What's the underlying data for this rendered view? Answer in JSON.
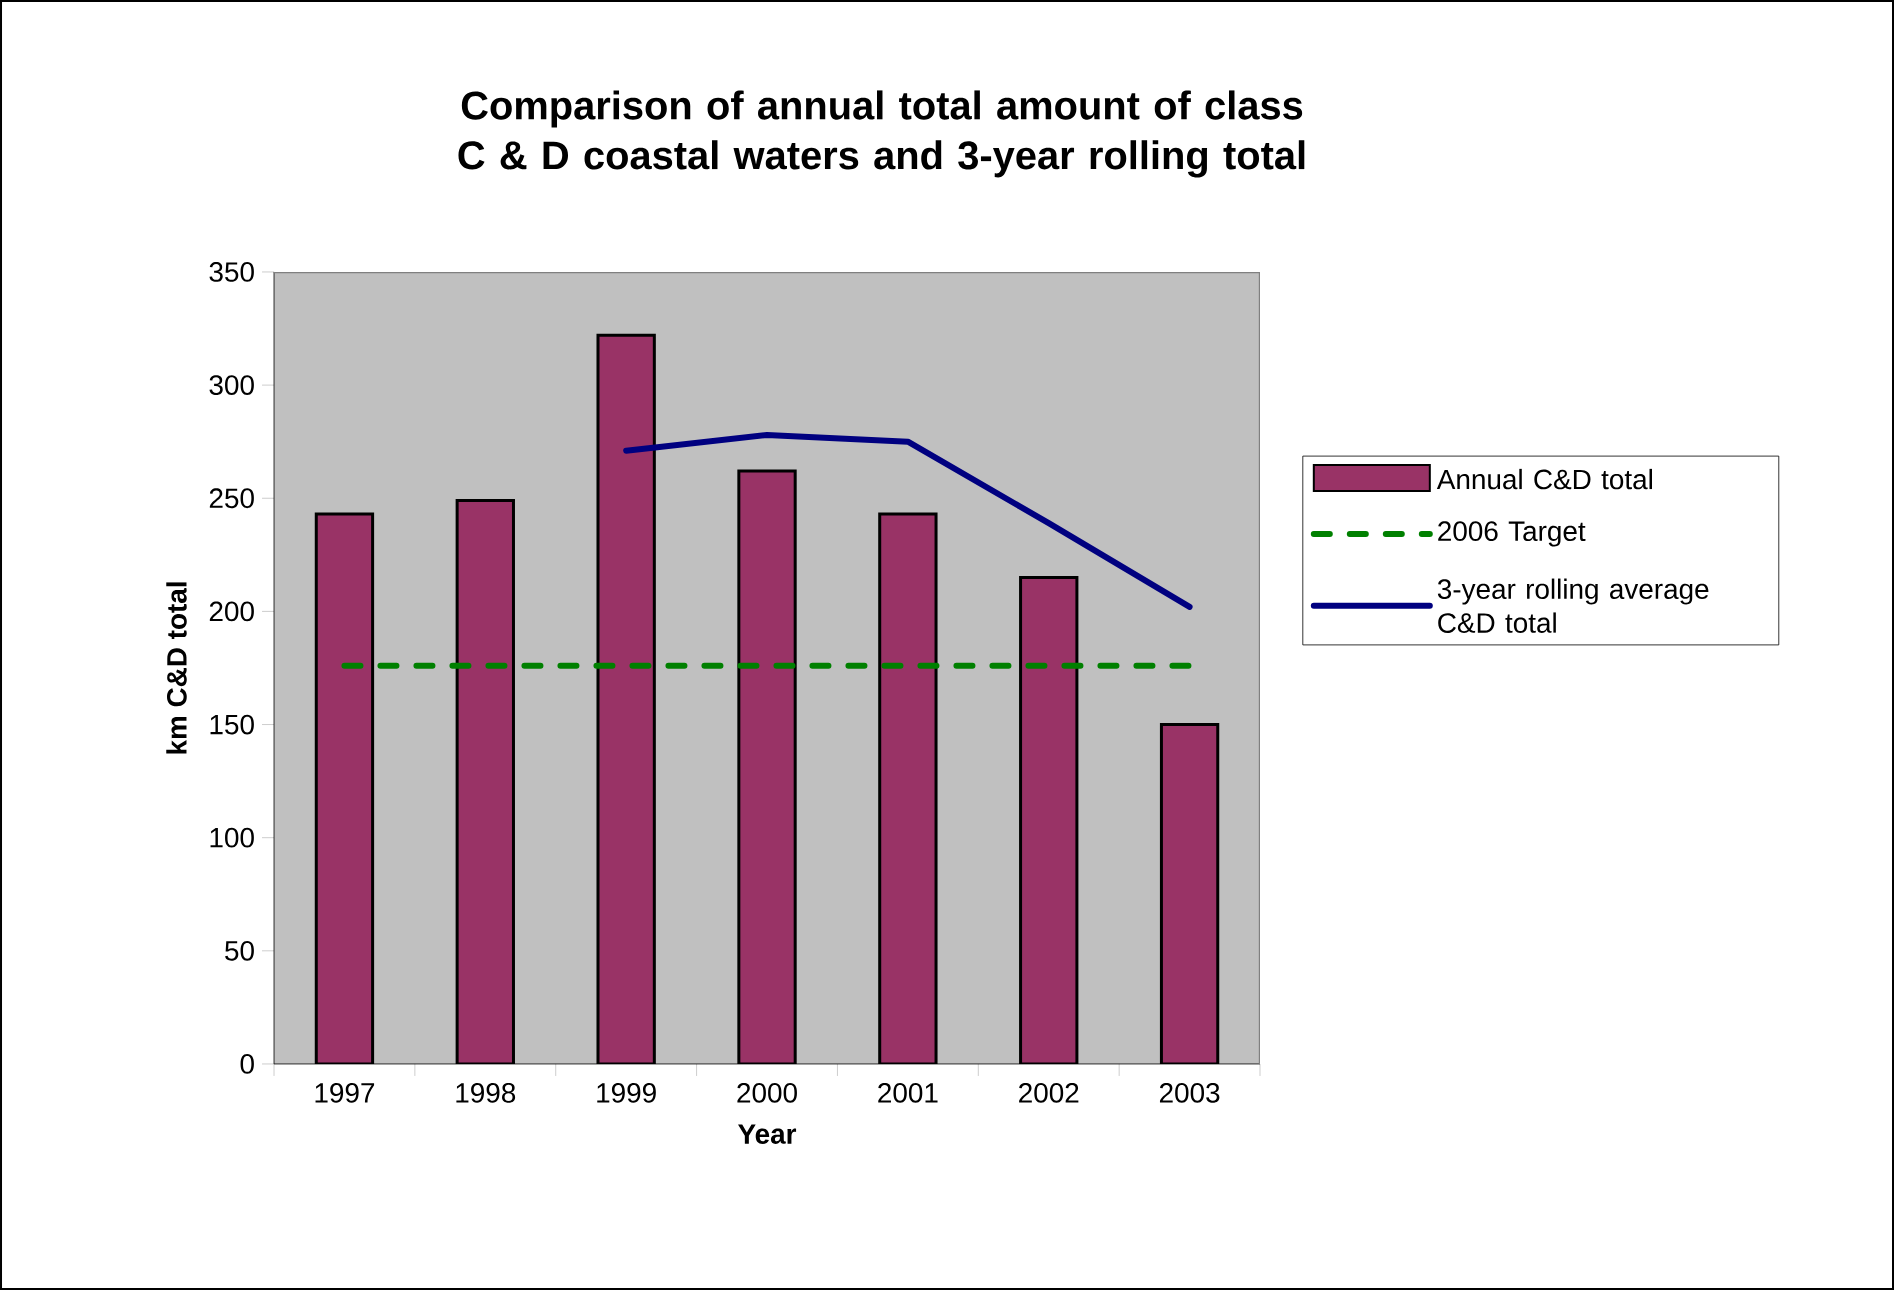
{
  "chart_data": {
    "type": "bar",
    "title": "Comparison of annual total amount of class C & D coastal waters and 3-year rolling total",
    "xlabel": "Year",
    "ylabel": "km C&D total",
    "categories": [
      "1997",
      "1998",
      "1999",
      "2000",
      "2001",
      "2002",
      "2003"
    ],
    "series": [
      {
        "name": "Annual C&D total",
        "type": "bar",
        "color": "#993366",
        "values": [
          243,
          249,
          322,
          262,
          243,
          215,
          150
        ]
      },
      {
        "name": "2006 Target",
        "type": "line",
        "color": "#008000",
        "line_style": "dashed",
        "values": [
          176,
          176,
          176,
          176,
          176,
          176,
          176
        ]
      },
      {
        "name": "3-year rolling average C&D total",
        "type": "line",
        "color": "#000080",
        "line_style": "solid",
        "values": [
          null,
          null,
          271,
          278,
          275,
          239,
          202
        ]
      }
    ],
    "ylim": [
      0,
      350
    ],
    "yticks": [
      0,
      50,
      100,
      150,
      200,
      250,
      300,
      350
    ],
    "grid": false,
    "legend": "right",
    "marker": "none"
  }
}
